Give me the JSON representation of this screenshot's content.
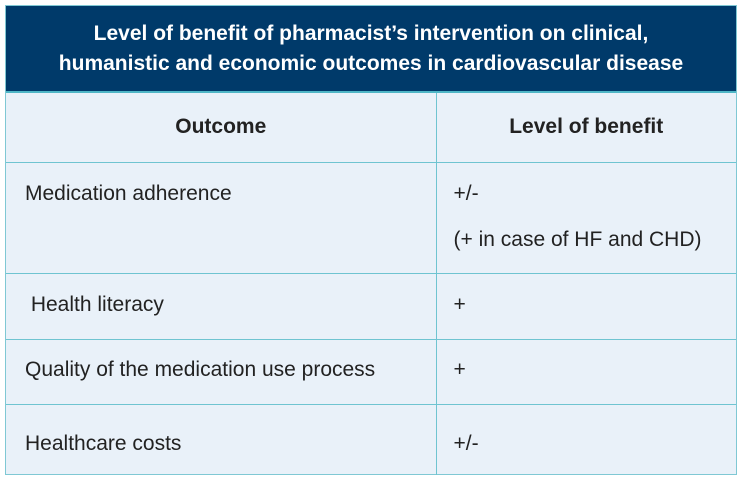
{
  "title": {
    "line1": "Level of benefit of pharmacist’s intervention on clinical,",
    "line2": "humanistic and economic outcomes in cardiovascular disease"
  },
  "columns": {
    "outcome": "Outcome",
    "benefit": "Level of benefit"
  },
  "rows": [
    {
      "outcome": "Medication adherence",
      "benefit": "+/-",
      "benefit_note": "(+ in case of HF and CHD)"
    },
    {
      "outcome": " Health literacy",
      "benefit": "+"
    },
    {
      "outcome": "Quality of the medication use process",
      "benefit": "+"
    },
    {
      "outcome": "Healthcare costs",
      "benefit": "+/-"
    }
  ]
}
